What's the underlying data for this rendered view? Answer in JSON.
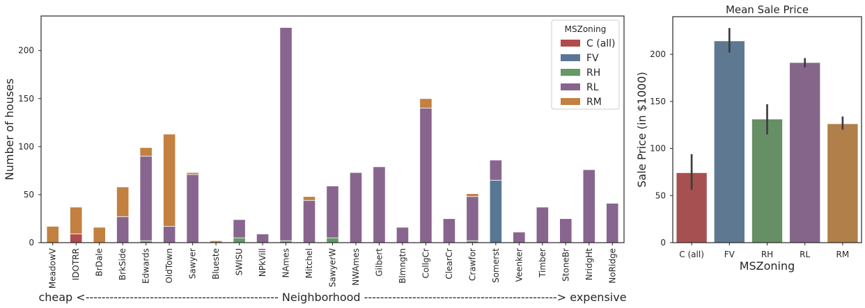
{
  "chart_data": [
    {
      "type": "bar",
      "stacked": true,
      "xlabel": "cheap <------------------------------------------------ Neighborhood ------------------------------------------------> expensive",
      "ylabel": "Number of houses",
      "ylim": [
        0,
        236
      ],
      "yticks": [
        0,
        50,
        100,
        150,
        200
      ],
      "grid": false,
      "legend": {
        "title": "MSZoning",
        "position": "top-right"
      },
      "categories": [
        "MeadowV",
        "IDOTRR",
        "BrDale",
        "BrkSide",
        "Edwards",
        "OldTown",
        "Sawyer",
        "Blueste",
        "SWISU",
        "NPkVill",
        "NAmes",
        "Mitchel",
        "SawyerW",
        "NWAmes",
        "Gilbert",
        "Blmngtn",
        "CollgCr",
        "ClearCr",
        "Crawfor",
        "Somerst",
        "Veenker",
        "Timber",
        "StoneBr",
        "NridgHt",
        "NoRidge"
      ],
      "series": [
        {
          "name": "C (all)",
          "color": "#b04c4c",
          "values": [
            0,
            9,
            0,
            0,
            0,
            0,
            0,
            0,
            0,
            0,
            0,
            0,
            0,
            0,
            0,
            0,
            0,
            0,
            0,
            0,
            0,
            0,
            0,
            0,
            0
          ]
        },
        {
          "name": "FV",
          "color": "#577794",
          "values": [
            0,
            0,
            0,
            0,
            0,
            0,
            0,
            0,
            0,
            0,
            0,
            0,
            0,
            0,
            0,
            0,
            0,
            0,
            0,
            65,
            0,
            0,
            0,
            0,
            0
          ]
        },
        {
          "name": "RH",
          "color": "#649a65",
          "values": [
            0,
            0,
            0,
            0,
            2,
            0,
            0,
            0,
            5,
            0,
            2,
            0,
            5,
            0,
            0,
            0,
            0,
            0,
            2,
            0,
            0,
            0,
            0,
            0,
            0
          ]
        },
        {
          "name": "RL",
          "color": "#88658e",
          "values": [
            0,
            0,
            0,
            27,
            88,
            17,
            71,
            0,
            19,
            9,
            222,
            44,
            54,
            73,
            79,
            16,
            140,
            25,
            46,
            21,
            11,
            37,
            25,
            76,
            41
          ]
        },
        {
          "name": "RM",
          "color": "#c38040",
          "values": [
            17,
            28,
            16,
            31,
            9,
            96,
            2,
            2,
            0,
            0,
            0,
            4,
            0,
            0,
            0,
            0,
            10,
            0,
            3,
            0,
            0,
            0,
            0,
            0,
            0
          ]
        }
      ]
    },
    {
      "type": "bar",
      "title": "Mean Sale Price",
      "xlabel": "MSZoning",
      "ylabel": "Sale Price (in $1000)",
      "ylim": [
        0,
        240
      ],
      "yticks": [
        0,
        50,
        100,
        150,
        200
      ],
      "grid": false,
      "categories": [
        "C (all)",
        "FV",
        "RH",
        "RL",
        "RM"
      ],
      "colors": [
        "#a75052",
        "#5e7891",
        "#678f65",
        "#85668a",
        "#b07f4a"
      ],
      "values": [
        74,
        214,
        131,
        191,
        126
      ],
      "error_bars": [
        [
          56,
          94
        ],
        [
          202,
          228
        ],
        [
          115,
          147
        ],
        [
          186,
          196
        ],
        [
          120,
          134
        ]
      ]
    }
  ]
}
